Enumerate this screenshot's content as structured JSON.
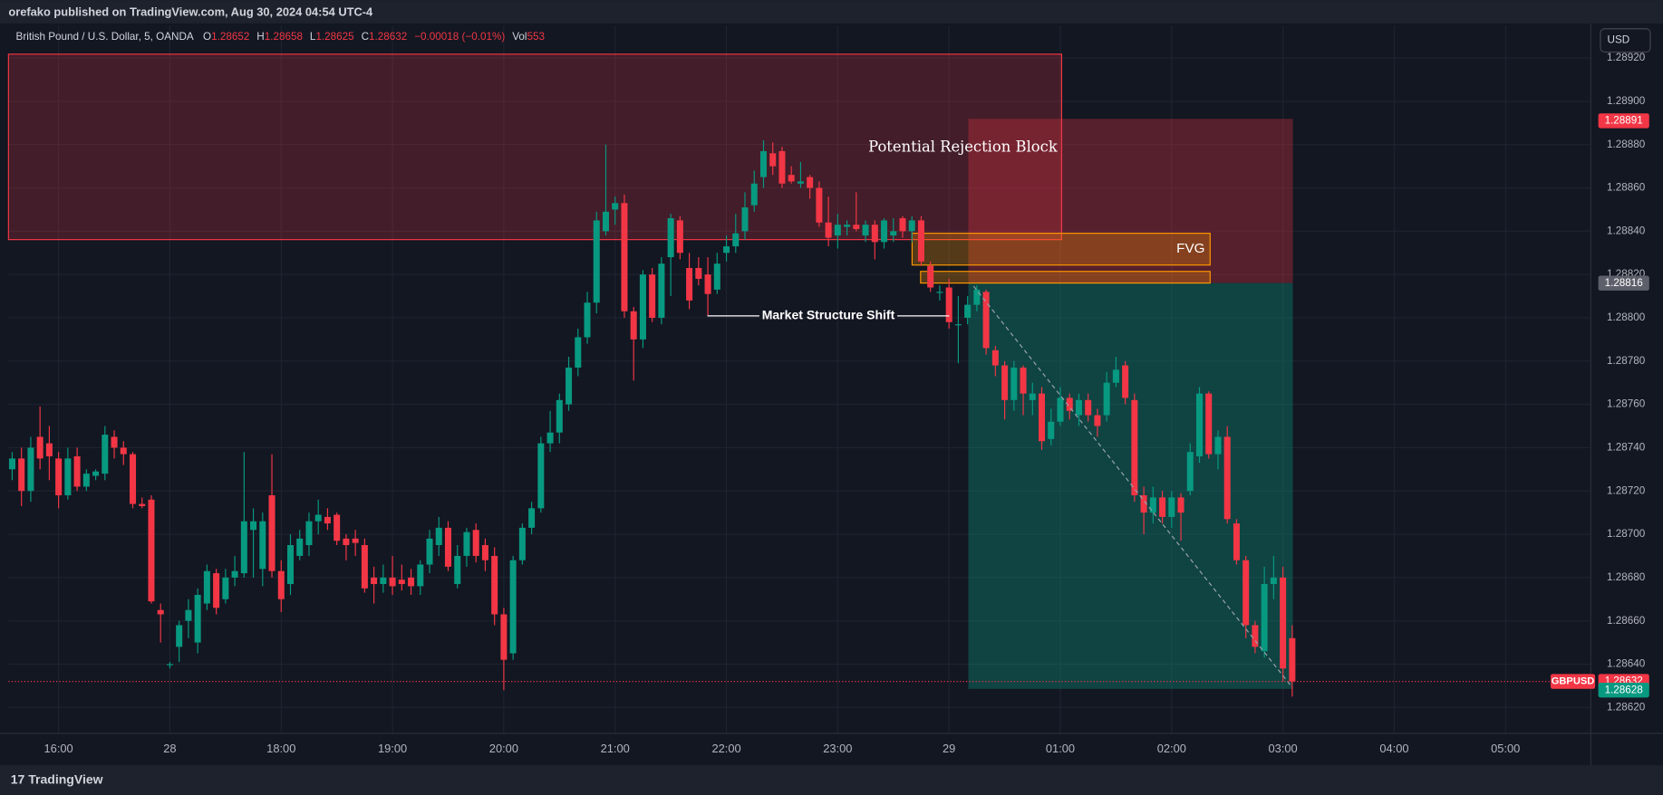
{
  "header": {
    "publisher": "orefako published on TradingView.com, Aug 30, 2024 04:54 UTC-4",
    "currency": "USD"
  },
  "footer": {
    "brand": "TradingView"
  },
  "chart_data": {
    "type": "candlestick",
    "legend": {
      "symbol": "British Pound / U.S. Dollar, 5, OANDA",
      "items": [
        {
          "label": "O",
          "value": 1.28652
        },
        {
          "label": "H",
          "value": 1.28658
        },
        {
          "label": "L",
          "value": 1.28625
        },
        {
          "label": "C",
          "value": 1.28632
        }
      ],
      "change": "−0.00018 (−0.01%)",
      "volume_label": "Vol",
      "volume": 553
    },
    "annotations": {
      "rejection": "Potential Rejection Block",
      "fvg": "FVG",
      "mss": "Market Structure Shift"
    },
    "up_color": "#089981",
    "down_color": "#f23645",
    "grid": true,
    "xlim": [
      -0.4,
      170.2
    ],
    "xticks": [
      {
        "value": 5,
        "label": "16:00"
      },
      {
        "value": 17,
        "label": "28"
      },
      {
        "value": 29,
        "label": "18:00"
      },
      {
        "value": 41,
        "label": "19:00"
      },
      {
        "value": 53,
        "label": "20:00"
      },
      {
        "value": 65,
        "label": "21:00"
      },
      {
        "value": 77,
        "label": "22:00"
      },
      {
        "value": 89,
        "label": "23:00"
      },
      {
        "value": 101,
        "label": "29"
      },
      {
        "value": 113,
        "label": "01:00"
      },
      {
        "value": 125,
        "label": "02:00"
      },
      {
        "value": 137,
        "label": "03:00"
      },
      {
        "value": 149,
        "label": "04:00"
      },
      {
        "value": 161,
        "label": "05:00"
      }
    ],
    "ylim": [
      1.28608,
      1.28935
    ],
    "yticks": [
      {
        "value": 1.2862,
        "label": "1.28620"
      },
      {
        "value": 1.2864,
        "label": "1.28640"
      },
      {
        "value": 1.2866,
        "label": "1.28660"
      },
      {
        "value": 1.2868,
        "label": "1.28680"
      },
      {
        "value": 1.287,
        "label": "1.28700"
      },
      {
        "value": 1.2872,
        "label": "1.28720"
      },
      {
        "value": 1.2874,
        "label": "1.28740"
      },
      {
        "value": 1.2876,
        "label": "1.28760"
      },
      {
        "value": 1.2878,
        "label": "1.28780"
      },
      {
        "value": 1.288,
        "label": "1.28800"
      },
      {
        "value": 1.2882,
        "label": "1.28820"
      },
      {
        "value": 1.2884,
        "label": "1.28840"
      },
      {
        "value": 1.2886,
        "label": "1.28860"
      },
      {
        "value": 1.2888,
        "label": "1.28880"
      },
      {
        "value": 1.289,
        "label": "1.28900"
      },
      {
        "value": 1.2892,
        "label": "1.28920"
      }
    ],
    "price_labels": [
      {
        "value": 1.28891,
        "color": "#f23645"
      },
      {
        "value": 1.28816,
        "color": "#5d606b"
      },
      {
        "name": "GBPUSD",
        "value": 1.28632,
        "color": "#f23645"
      },
      {
        "value": 1.28628,
        "color": "#089981"
      }
    ],
    "open": [
      1.2873,
      1.28735,
      1.2872,
      1.28745,
      1.28742,
      1.28735,
      1.28718,
      1.28736,
      1.28722,
      1.28727,
      1.28728,
      1.28745,
      1.2874,
      1.28737,
      1.28714,
      1.28716,
      1.28665,
      1.2864,
      1.28648,
      1.2866,
      1.2865,
      1.28668,
      1.28682,
      1.2867,
      1.2868,
      1.28682,
      1.28702,
      1.28684,
      1.28718,
      1.28683,
      1.28677,
      1.2869,
      1.28695,
      1.28706,
      1.28708,
      1.28709,
      1.28698,
      1.28698,
      1.28695,
      1.2868,
      1.28677,
      1.2868,
      1.28679,
      1.2868,
      1.28676,
      1.28686,
      1.28695,
      1.28703,
      1.28677,
      1.2869,
      1.28702,
      1.28695,
      1.2869,
      1.28663,
      1.28645,
      1.28688,
      1.28703,
      1.28712,
      1.28742,
      1.28747,
      1.2876,
      1.28777,
      1.28791,
      1.28807,
      1.2884,
      1.2885,
      1.28853,
      1.28803,
      1.2879,
      1.2882,
      1.288,
      1.28828,
      1.28845,
      1.28823,
      1.28823,
      1.2882,
      1.28813,
      1.2883,
      1.28833,
      1.2884,
      1.28852,
      1.28865,
      1.28876,
      1.28877,
      1.28866,
      1.28862,
      1.28865,
      1.2886,
      1.28844,
      1.28838,
      1.28842,
      1.28843,
      1.28838,
      1.28843,
      1.28835,
      1.28838,
      1.28846,
      1.2884,
      1.28845,
      1.28824,
      1.28812,
      1.28814,
      1.28797,
      1.288,
      1.28806,
      1.28812,
      1.28785,
      1.28778,
      1.28762,
      1.28777,
      1.28762,
      1.28765,
      1.28744,
      1.28752,
      1.28763,
      1.28755,
      1.28762,
      1.28755,
      1.28755,
      1.2877,
      1.28778,
      1.28762,
      1.28718,
      1.2871,
      1.28717,
      1.28708,
      1.28717,
      1.2872,
      1.28736,
      1.28765,
      1.28737,
      1.28745,
      1.28705,
      1.28688,
      1.28658,
      1.28646,
      1.28677,
      1.2868,
      1.28652
    ],
    "high": [
      1.28738,
      1.2874,
      1.28745,
      1.28759,
      1.2875,
      1.28738,
      1.2874,
      1.2874,
      1.2873,
      1.2873,
      1.2875,
      1.28748,
      1.28743,
      1.28738,
      1.28717,
      1.28718,
      1.28668,
      1.28641,
      1.2866,
      1.2867,
      1.28675,
      1.28686,
      1.28684,
      1.28684,
      1.2869,
      1.28738,
      1.28712,
      1.2871,
      1.28737,
      1.28688,
      1.287,
      1.28702,
      1.2871,
      1.28716,
      1.28712,
      1.2871,
      1.287,
      1.28702,
      1.28698,
      1.28685,
      1.28686,
      1.2869,
      1.28686,
      1.28684,
      1.28688,
      1.28702,
      1.28708,
      1.28706,
      1.28695,
      1.28703,
      1.28705,
      1.28698,
      1.28694,
      1.28666,
      1.2869,
      1.28705,
      1.28715,
      1.28745,
      1.28757,
      1.28765,
      1.28782,
      1.28795,
      1.28812,
      1.28849,
      1.2888,
      1.28856,
      1.28857,
      1.28805,
      1.28822,
      1.28823,
      1.28828,
      1.28848,
      1.28847,
      1.2883,
      1.28828,
      1.28828,
      1.2883,
      1.28838,
      1.28848,
      1.28858,
      1.28868,
      1.28882,
      1.28881,
      1.28879,
      1.2887,
      1.28872,
      1.28866,
      1.28863,
      1.28856,
      1.28848,
      1.28845,
      1.28858,
      1.28845,
      1.28845,
      1.28846,
      1.28846,
      1.28847,
      1.28847,
      1.28847,
      1.28826,
      1.28815,
      1.28818,
      1.2881,
      1.2881,
      1.28815,
      1.28813,
      1.28787,
      1.2878,
      1.2878,
      1.28778,
      1.2877,
      1.28768,
      1.28758,
      1.28768,
      1.28765,
      1.28765,
      1.28765,
      1.28758,
      1.28775,
      1.28782,
      1.2878,
      1.28765,
      1.28722,
      1.28722,
      1.2872,
      1.2872,
      1.28719,
      1.28742,
      1.28768,
      1.28766,
      1.28748,
      1.2875,
      1.28707,
      1.2869,
      1.2866,
      1.28685,
      1.2869,
      1.28685,
      1.28658
    ],
    "low": [
      1.28725,
      1.28713,
      1.28715,
      1.2873,
      1.28725,
      1.28712,
      1.28716,
      1.2872,
      1.2872,
      1.28725,
      1.28725,
      1.28735,
      1.28732,
      1.28712,
      1.28712,
      1.28668,
      1.2865,
      1.28638,
      1.28641,
      1.28652,
      1.28645,
      1.28665,
      1.28663,
      1.28668,
      1.28676,
      1.2868,
      1.2868,
      1.28676,
      1.2868,
      1.28664,
      1.28672,
      1.28688,
      1.2869,
      1.287,
      1.28702,
      1.28695,
      1.28688,
      1.2869,
      1.28673,
      1.28668,
      1.28673,
      1.28672,
      1.28674,
      1.28672,
      1.28672,
      1.28682,
      1.2869,
      1.28683,
      1.28675,
      1.28685,
      1.28687,
      1.28683,
      1.28658,
      1.28628,
      1.28642,
      1.28686,
      1.287,
      1.2871,
      1.28738,
      1.28742,
      1.28757,
      1.28773,
      1.28788,
      1.28802,
      1.28838,
      1.28843,
      1.288,
      1.28771,
      1.28786,
      1.28798,
      1.28797,
      1.2881,
      1.28827,
      1.28804,
      1.28815,
      1.28801,
      1.28811,
      1.28826,
      1.2883,
      1.28836,
      1.28849,
      1.2886,
      1.28866,
      1.2886,
      1.28862,
      1.2886,
      1.28855,
      1.28842,
      1.28833,
      1.28832,
      1.28838,
      1.2884,
      1.28835,
      1.28827,
      1.28832,
      1.28835,
      1.28837,
      1.28835,
      1.28824,
      1.28812,
      1.28808,
      1.28795,
      1.28779,
      1.28797,
      1.28803,
      1.28783,
      1.28773,
      1.28753,
      1.28757,
      1.28755,
      1.28755,
      1.28739,
      1.28741,
      1.2875,
      1.28753,
      1.2875,
      1.28752,
      1.28745,
      1.28752,
      1.28768,
      1.2876,
      1.28715,
      1.287,
      1.28705,
      1.28705,
      1.28703,
      1.28697,
      1.28718,
      1.28733,
      1.28735,
      1.2873,
      1.28705,
      1.28686,
      1.28652,
      1.28645,
      1.28643,
      1.2867,
      1.28632,
      1.28625
    ],
    "close": [
      1.28735,
      1.2872,
      1.2874,
      1.28735,
      1.28736,
      1.28718,
      1.28735,
      1.28722,
      1.28728,
      1.28729,
      1.28746,
      1.2874,
      1.28737,
      1.28714,
      1.28713,
      1.28669,
      1.28663,
      1.2864,
      1.28658,
      1.28665,
      1.28672,
      1.28683,
      1.28666,
      1.2868,
      1.28683,
      1.28706,
      1.28706,
      1.28706,
      1.28683,
      1.2867,
      1.28695,
      1.28698,
      1.28706,
      1.28709,
      1.28705,
      1.28697,
      1.28695,
      1.28696,
      1.28675,
      1.28677,
      1.2868,
      1.28676,
      1.28677,
      1.28676,
      1.28686,
      1.28698,
      1.28703,
      1.28685,
      1.2869,
      1.28701,
      1.2869,
      1.28688,
      1.28663,
      1.28642,
      1.28688,
      1.28703,
      1.28712,
      1.28742,
      1.28747,
      1.28762,
      1.28777,
      1.28791,
      1.28807,
      1.28845,
      1.28849,
      1.28853,
      1.28803,
      1.2879,
      1.2882,
      1.288,
      1.28825,
      1.28846,
      1.2883,
      1.28808,
      1.28818,
      1.28811,
      1.28825,
      1.28833,
      1.28839,
      1.28851,
      1.28862,
      1.28877,
      1.2887,
      1.28862,
      1.28863,
      1.28863,
      1.2886,
      1.28844,
      1.28837,
      1.28843,
      1.28843,
      1.28841,
      1.28843,
      1.28835,
      1.28845,
      1.2884,
      1.2884,
      1.28845,
      1.28826,
      1.28814,
      1.28812,
      1.28798,
      1.28797,
      1.28806,
      1.28813,
      1.28786,
      1.28778,
      1.28762,
      1.28777,
      1.28765,
      1.28765,
      1.28743,
      1.28752,
      1.28763,
      1.28757,
      1.28762,
      1.28755,
      1.2875,
      1.2877,
      1.28776,
      1.28763,
      1.28718,
      1.2871,
      1.28717,
      1.28708,
      1.28717,
      1.2871,
      1.28738,
      1.28765,
      1.28737,
      1.28745,
      1.28707,
      1.28688,
      1.28658,
      1.28648,
      1.28677,
      1.2868,
      1.28638,
      1.28632
    ]
  }
}
